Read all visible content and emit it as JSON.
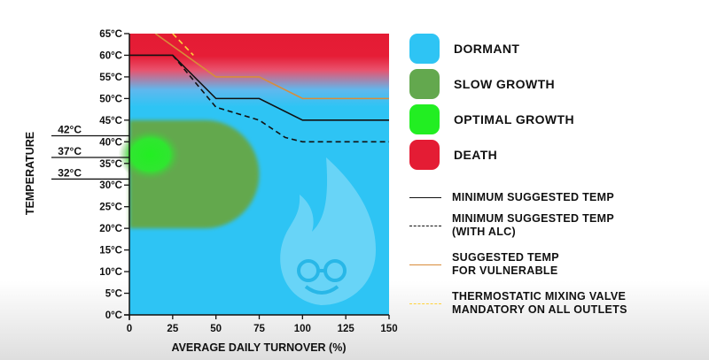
{
  "chart_data": {
    "type": "line",
    "xlabel": "AVERAGE DAILY TURNOVER (%)",
    "ylabel": "TEMPERATURE",
    "xlim": [
      0,
      150
    ],
    "ylim": [
      0,
      65
    ],
    "x_ticks": [
      "0",
      "25",
      "50",
      "75",
      "100",
      "125",
      "150"
    ],
    "y_ticks": [
      "0°C",
      "5°C",
      "10°C",
      "15°C",
      "20°C",
      "25°C",
      "30°C",
      "35°C",
      "40°C",
      "45°C",
      "50°C",
      "55°C",
      "60°C",
      "65°C"
    ],
    "extra_y_ticks": [
      {
        "label": "42°C",
        "value": 42
      },
      {
        "label": "37°C",
        "value": 37
      },
      {
        "label": "32°C",
        "value": 32
      }
    ],
    "zones": [
      {
        "name": "DORMANT",
        "color": "#2ec4f4"
      },
      {
        "name": "SLOW GROWTH",
        "color": "#63a84e",
        "x_range": [
          0,
          75
        ],
        "y_range": [
          20,
          45
        ]
      },
      {
        "name": "OPTIMAL GROWTH",
        "color": "#22ee22",
        "center": [
          10,
          37
        ]
      },
      {
        "name": "DEATH",
        "color": "#e41c34",
        "y_range": [
          55,
          65
        ]
      }
    ],
    "series": [
      {
        "name": "MINIMUM SUGGESTED TEMP",
        "color": "#111111",
        "style": "solid",
        "points": [
          [
            0,
            60
          ],
          [
            25,
            60
          ],
          [
            50,
            50
          ],
          [
            75,
            50
          ],
          [
            100,
            45
          ],
          [
            150,
            45
          ]
        ]
      },
      {
        "name": "MINIMUM SUGGESTED TEMP (WITH ALC)",
        "color": "#111111",
        "style": "dashed",
        "points": [
          [
            25,
            60
          ],
          [
            50,
            48
          ],
          [
            75,
            45
          ],
          [
            90,
            41
          ],
          [
            100,
            40
          ],
          [
            150,
            40
          ]
        ]
      },
      {
        "name": "SUGGESTED TEMP FOR VULNERABLE",
        "color": "#d98c3a",
        "style": "solid",
        "points": [
          [
            15,
            65
          ],
          [
            50,
            55
          ],
          [
            75,
            55
          ],
          [
            100,
            50
          ],
          [
            150,
            50
          ]
        ]
      },
      {
        "name": "THERMOSTATIC MIXING VALVE MANDATORY ON ALL OUTLETS",
        "color": "#ffd23a",
        "style": "dashed",
        "points": [
          [
            25,
            65
          ],
          [
            37,
            60
          ]
        ]
      }
    ]
  },
  "legend": {
    "zones": [
      {
        "label": "DORMANT",
        "color": "#2ec4f4"
      },
      {
        "label": "SLOW GROWTH",
        "color": "#63a84e"
      },
      {
        "label": "OPTIMAL GROWTH",
        "color": "#22ee22"
      },
      {
        "label": "DEATH",
        "color": "#e41c34"
      }
    ],
    "lines": [
      {
        "line1": "MINIMUM SUGGESTED TEMP",
        "line2": "",
        "color": "#111111",
        "style": "solid"
      },
      {
        "line1": "MINIMUM SUGGESTED TEMP",
        "line2": "(WITH ALC)",
        "color": "#111111",
        "style": "dashed"
      },
      {
        "line1": "SUGGESTED TEMP",
        "line2": "FOR VULNERABLE",
        "color": "#d98c3a",
        "style": "solid"
      },
      {
        "line1": "THERMOSTATIC MIXING VALVE",
        "line2": "MANDATORY ON ALL OUTLETS",
        "color": "#ffd23a",
        "style": "dashed"
      }
    ]
  },
  "watermark_icon": "flame-with-glasses-icon"
}
